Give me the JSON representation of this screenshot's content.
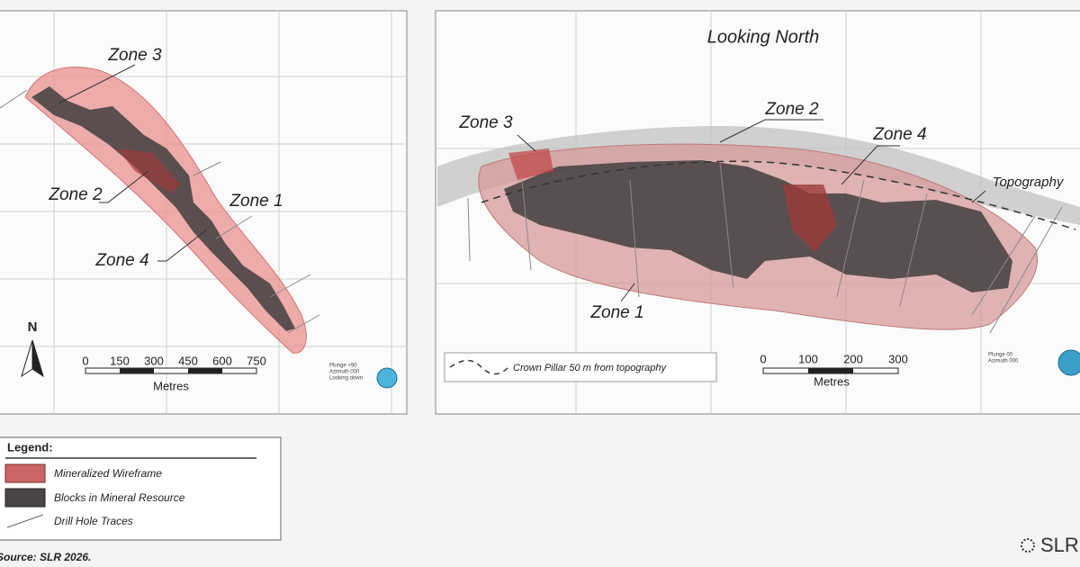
{
  "left_panel": {
    "zone_labels": [
      "Zone 3",
      "Zone 2",
      "Zone 1",
      "Zone 4"
    ],
    "north": "N",
    "scale_ticks": [
      0,
      150,
      300,
      450,
      600,
      750
    ],
    "scale_unit": "Metres",
    "view_info": [
      "Plunge +90",
      "Azimuth 000",
      "Looking down"
    ]
  },
  "right_panel": {
    "title": "Looking North",
    "zone_labels": [
      "Zone 3",
      "Zone 2",
      "Zone 4",
      "Zone 1"
    ],
    "topography_label": "Topography",
    "crown_pillar_label": "Crown Pillar 50 m from topography",
    "scale_ticks": [
      0,
      100,
      200,
      300
    ],
    "scale_unit": "Metres",
    "view_info": [
      "Plunge 00",
      "Azimuth 000"
    ]
  },
  "legend": {
    "title": "Legend:",
    "items": [
      "Mineralized Wireframe",
      "Blocks in Mineral Resource",
      "Drill Hole Traces"
    ]
  },
  "source": "Source: SLR 2026.",
  "logo": "SLR"
}
